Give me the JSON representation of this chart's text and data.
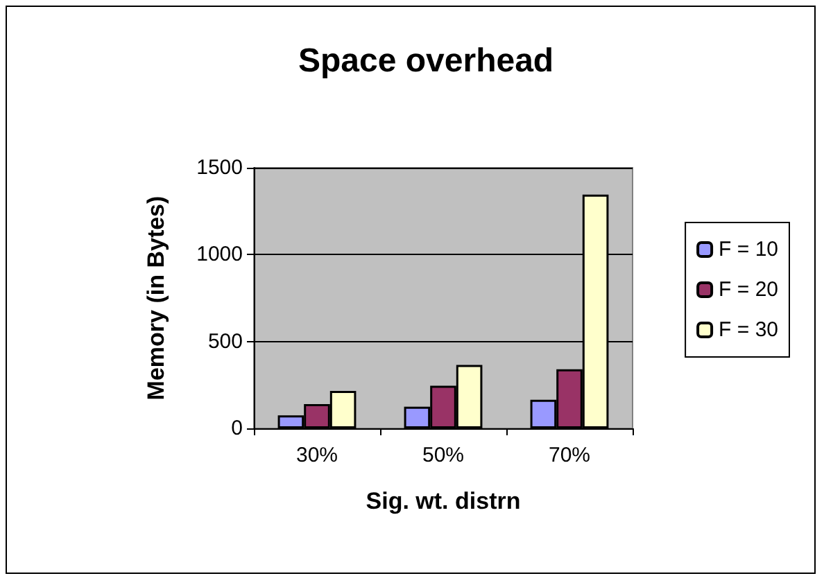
{
  "chart_data": {
    "type": "bar",
    "title": "Space overhead",
    "xlabel": "Sig. wt. distrn",
    "ylabel": "Memory (in Bytes)",
    "categories": [
      "30%",
      "50%",
      "70%"
    ],
    "series": [
      {
        "name": "F = 10",
        "color": "#9999ff",
        "values": [
          75,
          125,
          165
        ]
      },
      {
        "name": "F = 20",
        "color": "#993366",
        "values": [
          140,
          245,
          340
        ]
      },
      {
        "name": "F = 30",
        "color": "#ffffcc",
        "values": [
          215,
          365,
          1345
        ]
      }
    ],
    "ylim": [
      0,
      1500
    ],
    "yticks": [
      0,
      500,
      1000,
      1500
    ],
    "grid": "y",
    "legend": "right"
  }
}
